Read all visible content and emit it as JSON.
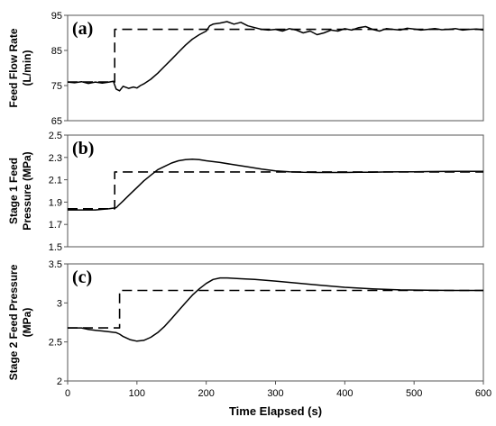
{
  "chart_data": [
    {
      "type": "line",
      "panel_label": "(a)",
      "ylabel": [
        "Feed Flow Rate",
        "(L/min)"
      ],
      "ylim": [
        65,
        95
      ],
      "yticks": [
        65,
        75,
        85,
        95
      ],
      "xlim": [
        0,
        600
      ],
      "grid": false,
      "series": [
        {
          "style": "dashed",
          "x": [
            0,
            68,
            68,
            600
          ],
          "y": [
            76,
            76,
            91,
            91
          ]
        },
        {
          "style": "solid",
          "x": [
            0,
            10,
            20,
            30,
            40,
            50,
            60,
            66,
            70,
            75,
            80,
            88,
            95,
            100,
            105,
            110,
            120,
            130,
            140,
            150,
            160,
            170,
            180,
            190,
            200,
            205,
            210,
            220,
            230,
            240,
            250,
            260,
            270,
            280,
            290,
            300,
            310,
            320,
            330,
            340,
            350,
            360,
            370,
            380,
            390,
            400,
            410,
            420,
            430,
            440,
            450,
            460,
            470,
            480,
            490,
            500,
            510,
            520,
            530,
            540,
            550,
            560,
            570,
            580,
            590,
            600
          ],
          "y": [
            76,
            75.8,
            76.1,
            75.6,
            76,
            75.7,
            76,
            76.2,
            74,
            73.5,
            74.8,
            74.2,
            74.6,
            74.3,
            75,
            75.5,
            76.8,
            78.5,
            80.5,
            82.5,
            84.5,
            86.5,
            88.2,
            89.5,
            90.5,
            92,
            92.5,
            92.8,
            93.2,
            92.5,
            93,
            92,
            91.5,
            91,
            90.8,
            91,
            90.5,
            91.2,
            90.8,
            90,
            90.5,
            89.5,
            90,
            90.8,
            90.5,
            91.2,
            90.8,
            91.5,
            91.8,
            91,
            90.5,
            91.2,
            91,
            90.8,
            91.3,
            91.1,
            90.8,
            91,
            91.2,
            90.9,
            91,
            91.2,
            90.8,
            91,
            91.1,
            90.8
          ]
        }
      ]
    },
    {
      "type": "line",
      "panel_label": "(b)",
      "ylabel": [
        "Stage 1 Feed",
        "Pressure (MPa)"
      ],
      "ylim": [
        1.5,
        2.5
      ],
      "yticks": [
        1.5,
        1.7,
        1.9,
        2.1,
        2.3,
        2.5
      ],
      "xlim": [
        0,
        600
      ],
      "grid": false,
      "series": [
        {
          "style": "dashed",
          "x": [
            0,
            68,
            68,
            600
          ],
          "y": [
            1.84,
            1.84,
            2.17,
            2.17
          ]
        },
        {
          "style": "solid",
          "x": [
            0,
            20,
            40,
            60,
            70,
            75,
            80,
            90,
            100,
            110,
            120,
            130,
            140,
            150,
            160,
            170,
            180,
            190,
            200,
            220,
            240,
            260,
            280,
            300,
            320,
            340,
            360,
            380,
            400,
            420,
            440,
            460,
            480,
            500,
            520,
            540,
            560,
            580,
            600
          ],
          "y": [
            1.83,
            1.83,
            1.83,
            1.84,
            1.85,
            1.88,
            1.91,
            1.97,
            2.03,
            2.09,
            2.14,
            2.19,
            2.22,
            2.25,
            2.27,
            2.28,
            2.285,
            2.28,
            2.27,
            2.255,
            2.235,
            2.215,
            2.195,
            2.18,
            2.172,
            2.167,
            2.165,
            2.165,
            2.165,
            2.167,
            2.168,
            2.17,
            2.171,
            2.172,
            2.173,
            2.174,
            2.175,
            2.175,
            2.175
          ]
        }
      ]
    },
    {
      "type": "line",
      "panel_label": "(c)",
      "ylabel": [
        "Stage 2 Feed Pressure",
        "(MPa)"
      ],
      "ylim": [
        2,
        3.5
      ],
      "yticks": [
        2,
        2.5,
        3,
        3.5
      ],
      "xlim": [
        0,
        600
      ],
      "xticks": [
        0,
        100,
        200,
        300,
        400,
        500,
        600
      ],
      "xlabel": "Time Elapsed (s)",
      "grid": false,
      "series": [
        {
          "style": "dashed",
          "x": [
            0,
            75,
            75,
            600
          ],
          "y": [
            2.68,
            2.68,
            3.16,
            3.16
          ]
        },
        {
          "style": "solid",
          "x": [
            0,
            20,
            30,
            40,
            50,
            60,
            70,
            75,
            80,
            90,
            100,
            110,
            120,
            130,
            140,
            150,
            160,
            170,
            180,
            190,
            200,
            210,
            220,
            230,
            250,
            270,
            300,
            330,
            360,
            400,
            440,
            480,
            520,
            560,
            600
          ],
          "y": [
            2.68,
            2.68,
            2.66,
            2.65,
            2.64,
            2.63,
            2.62,
            2.6,
            2.57,
            2.53,
            2.51,
            2.52,
            2.56,
            2.62,
            2.7,
            2.8,
            2.9,
            3.0,
            3.1,
            3.18,
            3.25,
            3.3,
            3.32,
            3.32,
            3.31,
            3.3,
            3.28,
            3.255,
            3.23,
            3.2,
            3.18,
            3.167,
            3.162,
            3.16,
            3.16
          ]
        }
      ]
    }
  ]
}
